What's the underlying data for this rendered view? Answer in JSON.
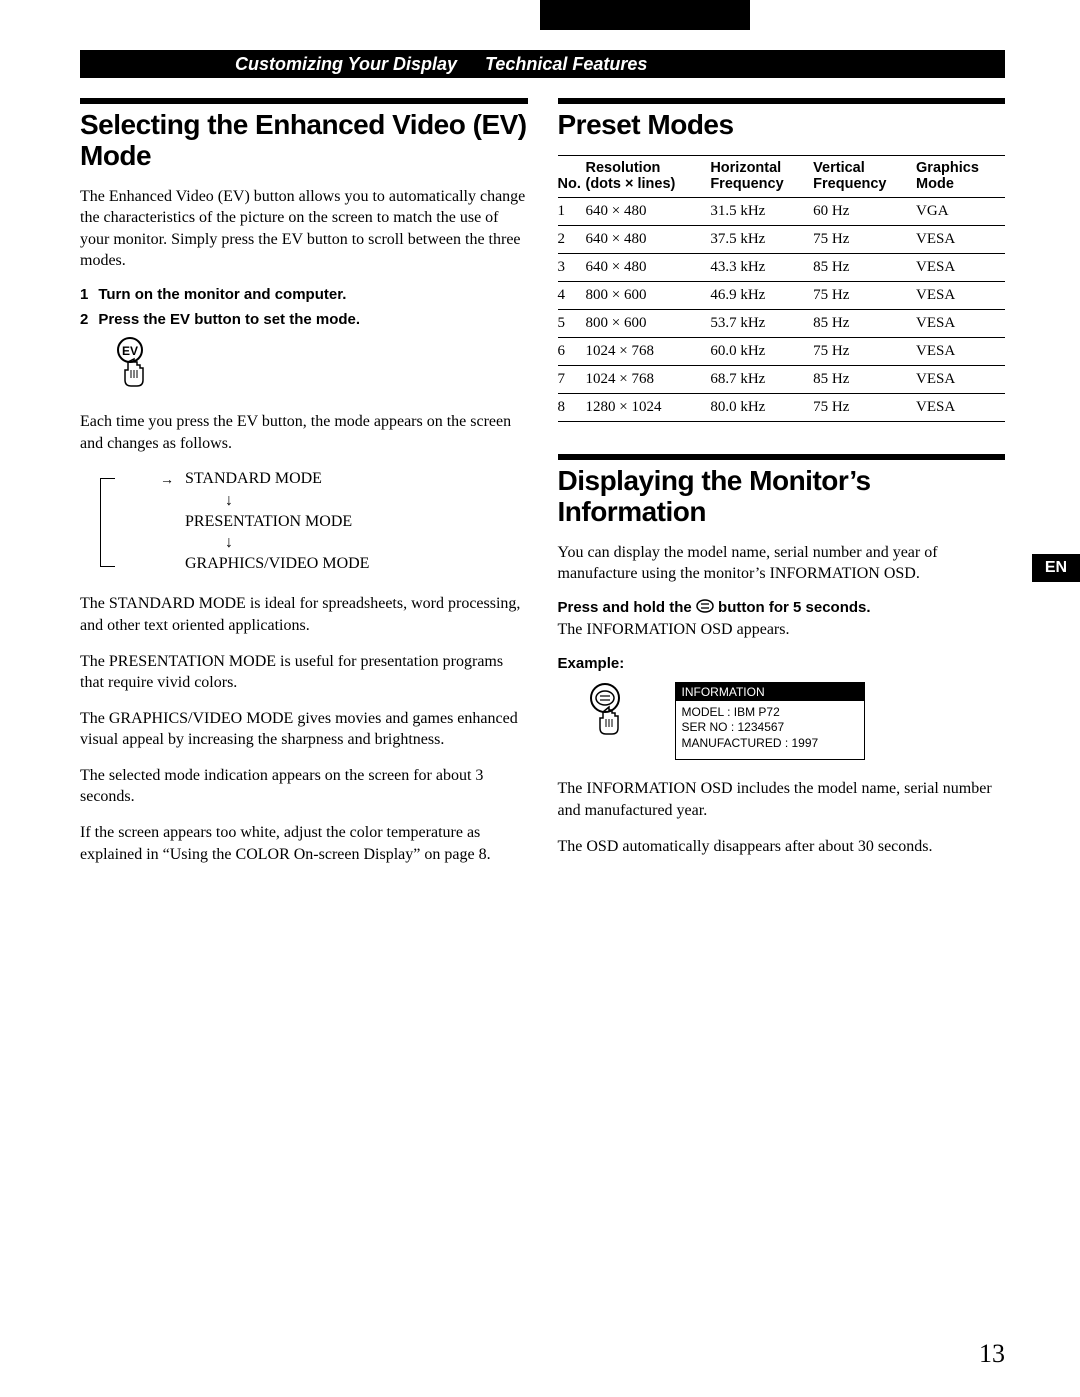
{
  "header": {
    "left": "Customizing Your Display",
    "right": "Technical Features"
  },
  "lang_tab": "EN",
  "page_number": "13",
  "left_col": {
    "title": "Selecting the Enhanced Video (EV) Mode",
    "intro": "The Enhanced Video (EV) button allows you to automatically change the characteristics of the picture on the screen to match the use of your monitor. Simply press the EV button to scroll between the three modes.",
    "steps": [
      {
        "num": "1",
        "text": "Turn on the monitor and computer."
      },
      {
        "num": "2",
        "text": "Press the EV button to set the mode."
      }
    ],
    "after_icon": "Each time you press the EV button, the mode appears on the screen and changes as follows.",
    "modes": {
      "a": "STANDARD MODE",
      "b": "PRESENTATION MODE",
      "c": "GRAPHICS/VIDEO MODE"
    },
    "p_standard": "The STANDARD MODE is ideal for spreadsheets, word processing, and other text oriented applications.",
    "p_presentation": "The PRESENTATION MODE is useful for presentation programs that require vivid colors.",
    "p_graphics": "The GRAPHICS/VIDEO MODE gives movies and games enhanced visual appeal by increasing the sharpness and brightness.",
    "p_selected": "The selected mode indication appears on the screen for about 3 seconds.",
    "p_white": "If the screen appears too white, adjust the color temperature as explained in “Using the COLOR On-screen Display” on page 8."
  },
  "right_col": {
    "preset_title": "Preset Modes",
    "table": {
      "head": {
        "no": "No.",
        "res": "Resolution\n(dots × lines)",
        "hf": "Horizontal\nFrequency",
        "vf": "Vertical\nFrequency",
        "gm": "Graphics\nMode"
      },
      "rows": [
        {
          "no": "1",
          "res": "640 × 480",
          "hf": "31.5 kHz",
          "vf": "60 Hz",
          "gm": "VGA"
        },
        {
          "no": "2",
          "res": "640 × 480",
          "hf": "37.5 kHz",
          "vf": "75 Hz",
          "gm": "VESA"
        },
        {
          "no": "3",
          "res": "640 × 480",
          "hf": "43.3 kHz",
          "vf": "85 Hz",
          "gm": "VESA"
        },
        {
          "no": "4",
          "res": "800 × 600",
          "hf": "46.9 kHz",
          "vf": "75 Hz",
          "gm": "VESA"
        },
        {
          "no": "5",
          "res": "800 × 600",
          "hf": "53.7 kHz",
          "vf": "85 Hz",
          "gm": "VESA"
        },
        {
          "no": "6",
          "res": "1024 × 768",
          "hf": "60.0 kHz",
          "vf": "75 Hz",
          "gm": "VESA"
        },
        {
          "no": "7",
          "res": "1024 × 768",
          "hf": "68.7 kHz",
          "vf": "85 Hz",
          "gm": "VESA"
        },
        {
          "no": "8",
          "res": "1280 × 1024",
          "hf": "80.0 kHz",
          "vf": "75 Hz",
          "gm": "VESA"
        }
      ]
    },
    "info_title": "Displaying the Monitor’s Information",
    "info_intro": "You can display the model name, serial number and year of manufacture using the monitor’s INFORMATION OSD.",
    "press_hold_pre": "Press and hold the ",
    "press_hold_post": " button for 5 seconds.",
    "info_appears": "The INFORMATION OSD appears.",
    "example_label": "Example:",
    "osd": {
      "title": "INFORMATION",
      "l1": "MODEL : IBM P72",
      "l2": "SER NO : 1234567",
      "l3": "MANUFACTURED : 1997"
    },
    "info_includes": "The INFORMATION OSD includes the model name, serial number and manufactured year.",
    "info_disappears": "The OSD automatically disappears after about 30 seconds."
  }
}
